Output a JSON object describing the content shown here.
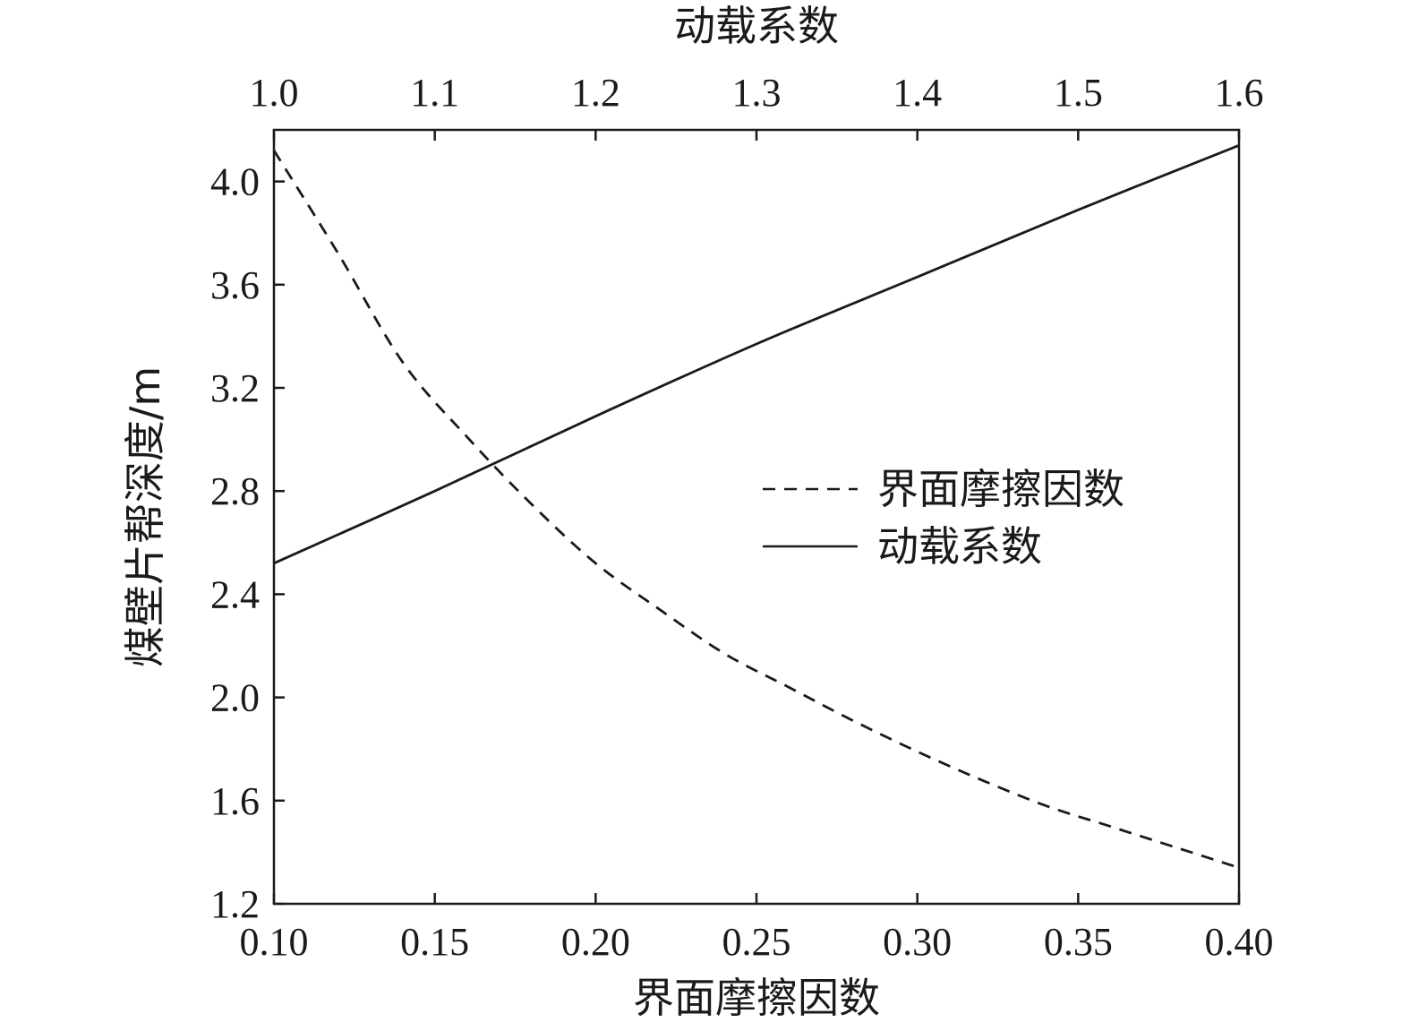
{
  "chart_data": {
    "type": "line",
    "title": "",
    "xlabel": "界面摩擦因数",
    "x2label": "动载系数",
    "ylabel": "煤壁片帮深度/m",
    "xlim": [
      0.1,
      0.4
    ],
    "x2lim": [
      1.0,
      1.6
    ],
    "ylim": [
      1.2,
      4.2
    ],
    "x_ticks": [
      "0.10",
      "0.15",
      "0.20",
      "0.25",
      "0.30",
      "0.35",
      "0.40"
    ],
    "x2_ticks": [
      "1.0",
      "1.1",
      "1.2",
      "1.3",
      "1.4",
      "1.5",
      "1.6"
    ],
    "y_ticks": [
      "1.2",
      "1.6",
      "2.0",
      "2.4",
      "2.8",
      "3.2",
      "3.6",
      "4.0"
    ],
    "legend_position": "center-right",
    "series": [
      {
        "name": "界面摩擦因数",
        "axis": "bottom",
        "style": "dashed",
        "color": "#1a1a1a",
        "x": [
          0.1,
          0.12,
          0.14,
          0.16,
          0.18,
          0.2,
          0.22,
          0.24,
          0.26,
          0.28,
          0.3,
          0.32,
          0.34,
          0.36,
          0.38,
          0.4
        ],
        "y": [
          4.12,
          3.72,
          3.3,
          3.01,
          2.75,
          2.52,
          2.34,
          2.17,
          2.04,
          1.91,
          1.79,
          1.68,
          1.58,
          1.5,
          1.42,
          1.34
        ]
      },
      {
        "name": "动载系数",
        "axis": "top",
        "style": "solid",
        "color": "#1a1a1a",
        "x": [
          1.0,
          1.1,
          1.2,
          1.3,
          1.4,
          1.5,
          1.6
        ],
        "y": [
          2.52,
          2.8,
          3.09,
          3.37,
          3.63,
          3.89,
          4.14
        ]
      }
    ]
  }
}
